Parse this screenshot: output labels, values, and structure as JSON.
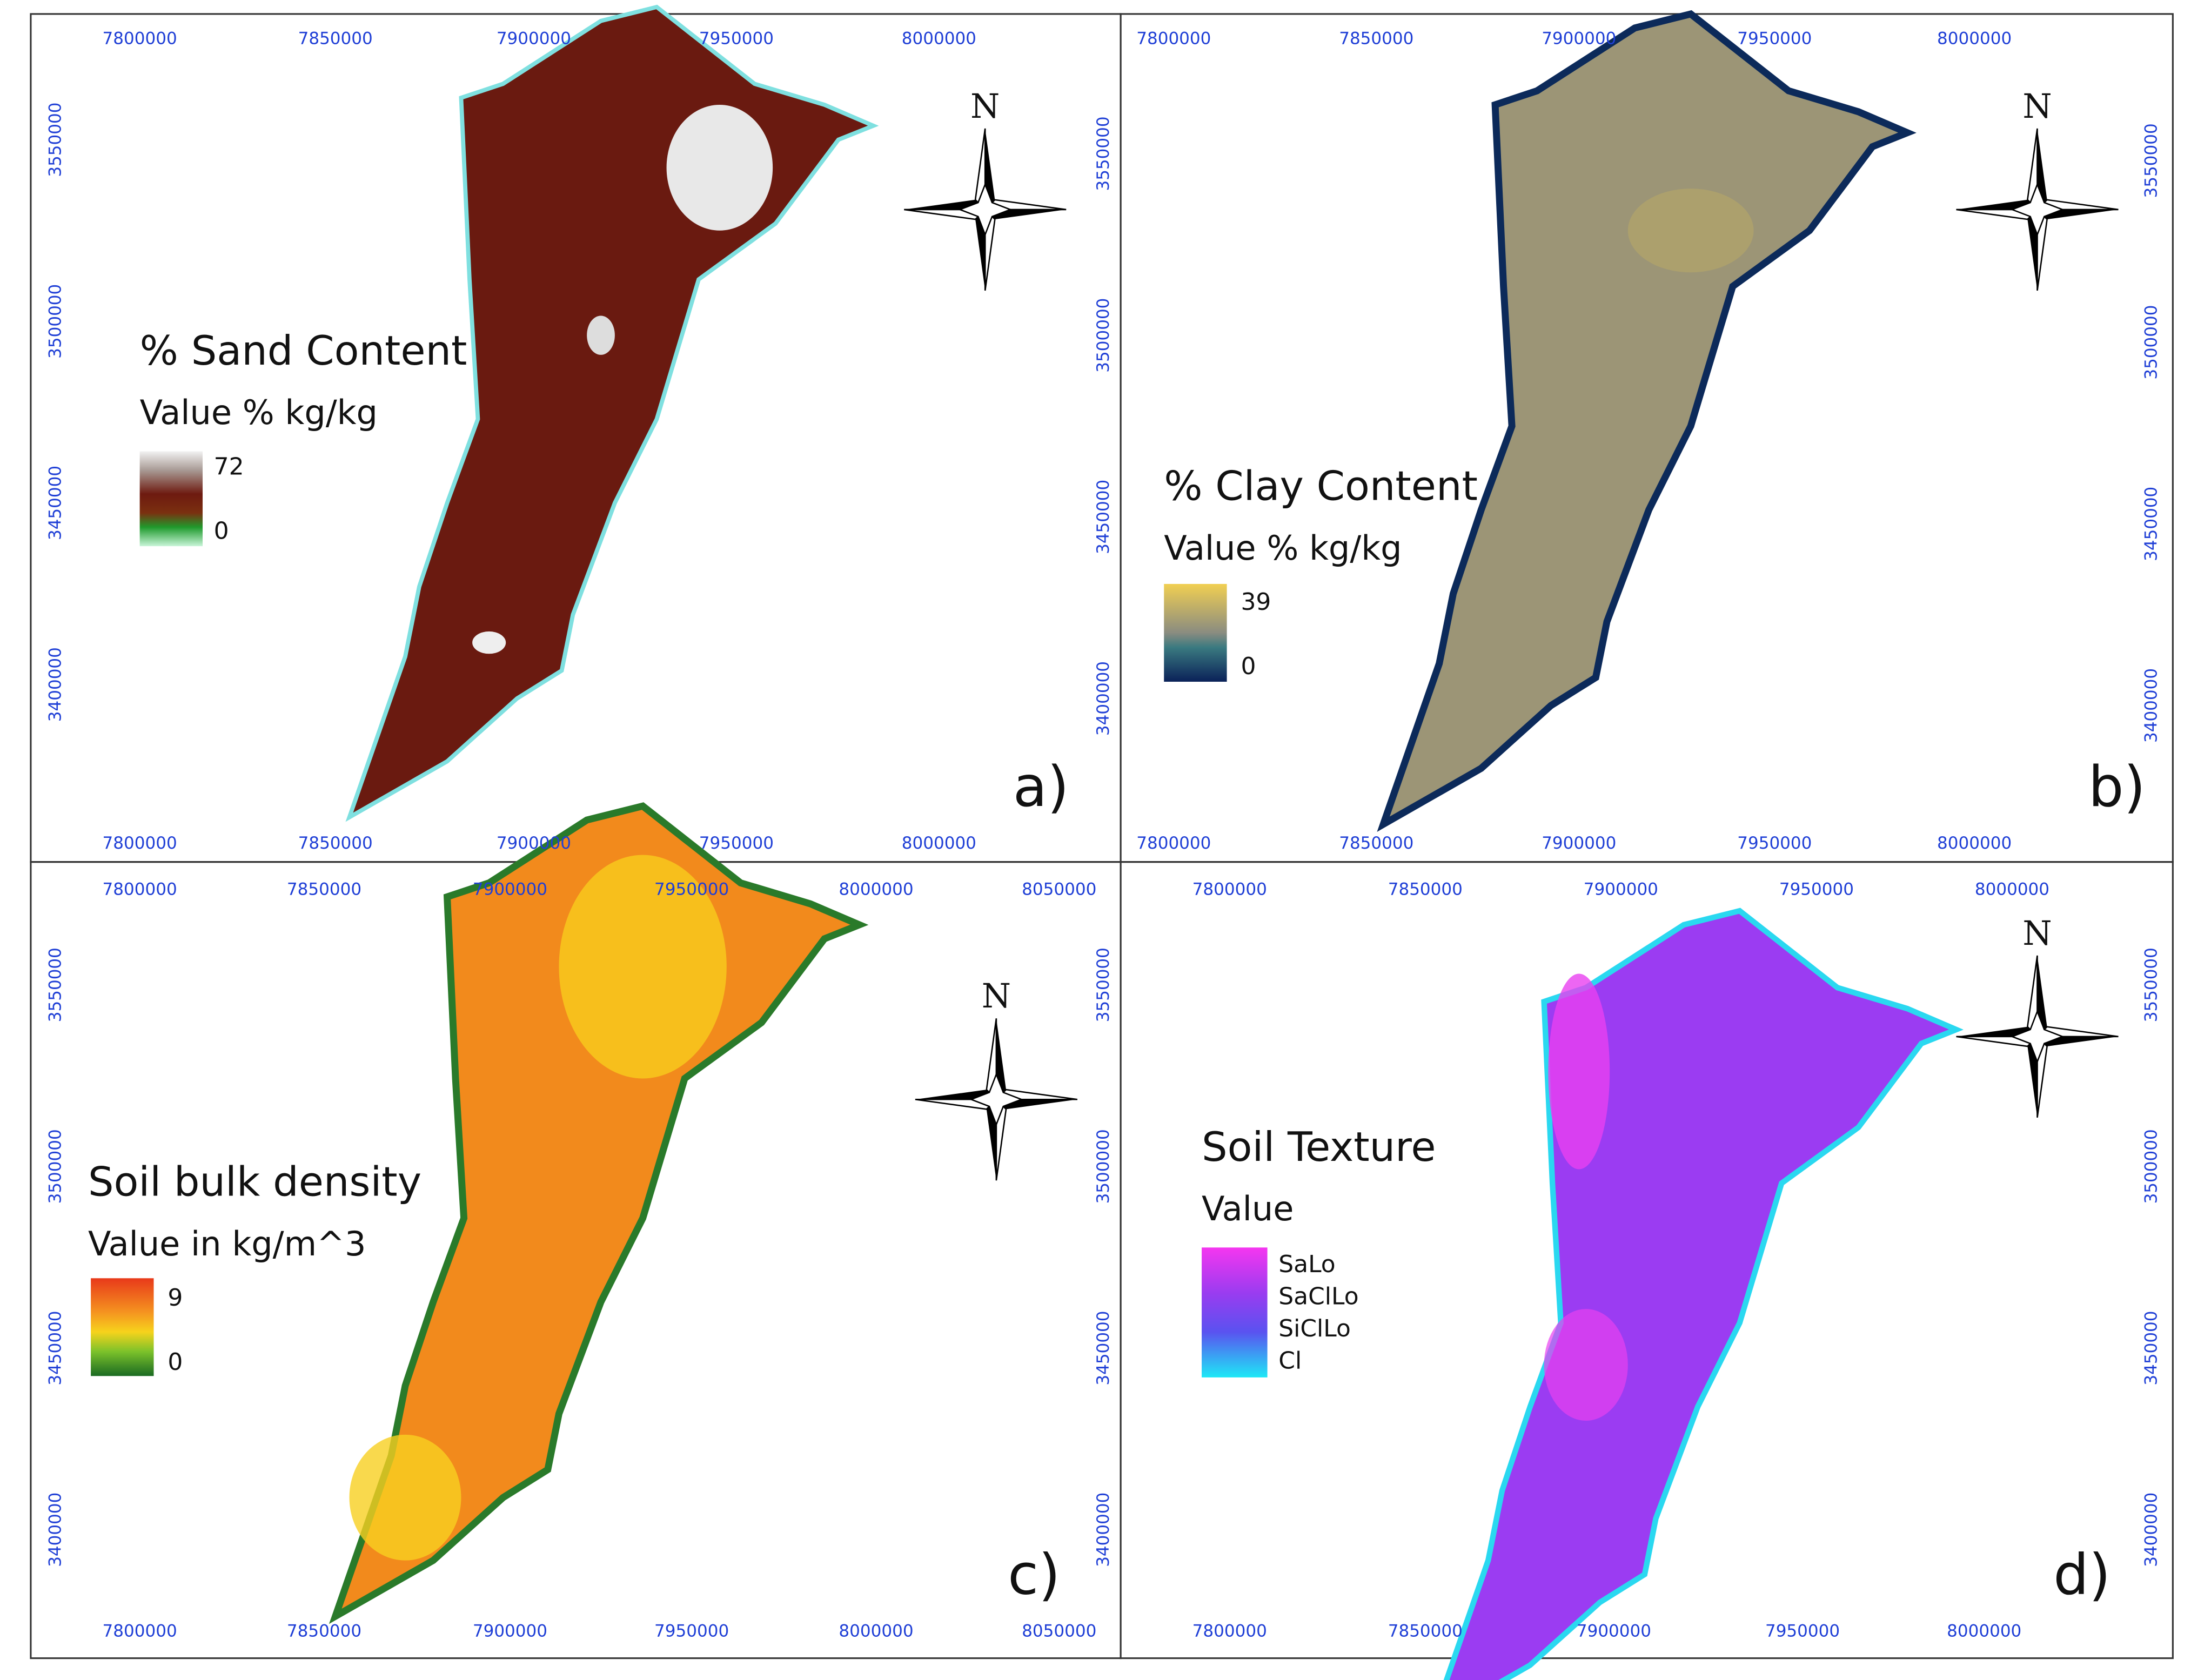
{
  "panels": [
    {
      "label": "a)",
      "north": "N",
      "legend": {
        "title": "% Sand Content",
        "subtitle": "Value % kg/kg",
        "items": [
          "72",
          "0"
        ]
      },
      "x_top": [
        7800000,
        7850000,
        7900000,
        7950000,
        8000000
      ],
      "x_bottom": [
        7800000,
        7850000,
        7900000,
        7950000,
        8000000
      ],
      "y_left": [
        3550000,
        3500000,
        3450000,
        3400000
      ],
      "y_right": []
    },
    {
      "label": "b)",
      "north": "N",
      "legend": {
        "title": "% Clay Content",
        "subtitle": "Value % kg/kg",
        "items": [
          "39",
          "0"
        ]
      },
      "x_top": [
        7800000,
        7850000,
        7900000,
        7950000,
        8000000
      ],
      "x_bottom": [
        7800000,
        7850000,
        7900000,
        7950000,
        8000000
      ],
      "y_left": [
        3550000,
        3500000,
        3450000,
        3400000
      ],
      "y_right": [
        3550000,
        3500000,
        3450000,
        3400000
      ]
    },
    {
      "label": "c)",
      "north": "N",
      "legend": {
        "title": "Soil bulk density",
        "subtitle": "Value in kg/m^3",
        "items": [
          "9",
          "0"
        ]
      },
      "x_top": [
        7800000,
        7850000,
        7900000,
        7950000,
        8000000,
        8050000
      ],
      "x_bottom": [
        7800000,
        7850000,
        7900000,
        7950000,
        8000000,
        8050000
      ],
      "y_left": [
        3550000,
        3500000,
        3450000,
        3400000
      ],
      "y_right": []
    },
    {
      "label": "d)",
      "north": "N",
      "legend": {
        "title": "Soil Texture",
        "subtitle": "Value",
        "items": [
          "SaLo",
          "SaClLo",
          "SiClLo",
          "Cl"
        ]
      },
      "x_top": [
        7800000,
        7850000,
        7900000,
        7950000,
        8000000
      ],
      "x_bottom": [
        7800000,
        7850000,
        7900000,
        7950000,
        8000000
      ],
      "y_left": [
        3550000,
        3500000,
        3450000,
        3400000
      ],
      "y_right": [
        3550000,
        3500000,
        3450000,
        3400000
      ]
    }
  ]
}
